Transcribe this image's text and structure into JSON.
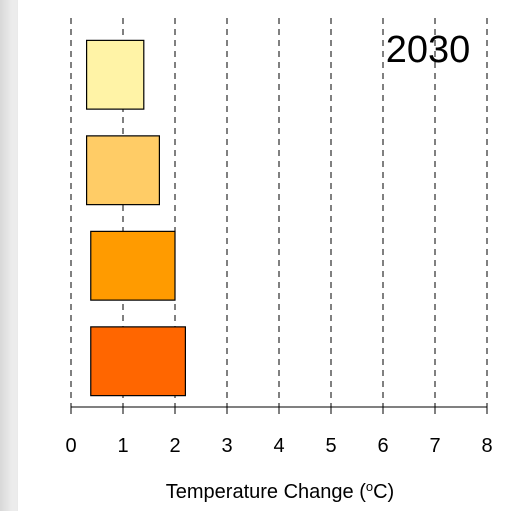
{
  "chart_data": {
    "type": "bar",
    "orientation": "horizontal",
    "title": "2030",
    "xlabel": "Temperature Change (",
    "xlabel_unit_sup": "o",
    "xlabel_unit_tail": "C)",
    "xlim": [
      0,
      8
    ],
    "xticks": [
      0,
      1,
      2,
      3,
      4,
      5,
      6,
      7,
      8
    ],
    "grid": "vertical-dashed",
    "bars": [
      {
        "low": 0.3,
        "high": 1.4,
        "color": "#fff3a6"
      },
      {
        "low": 0.3,
        "high": 1.7,
        "color": "#ffcc66"
      },
      {
        "low": 0.38,
        "high": 2.0,
        "color": "#ff9b00"
      },
      {
        "low": 0.38,
        "high": 2.2,
        "color": "#ff6600"
      }
    ]
  }
}
